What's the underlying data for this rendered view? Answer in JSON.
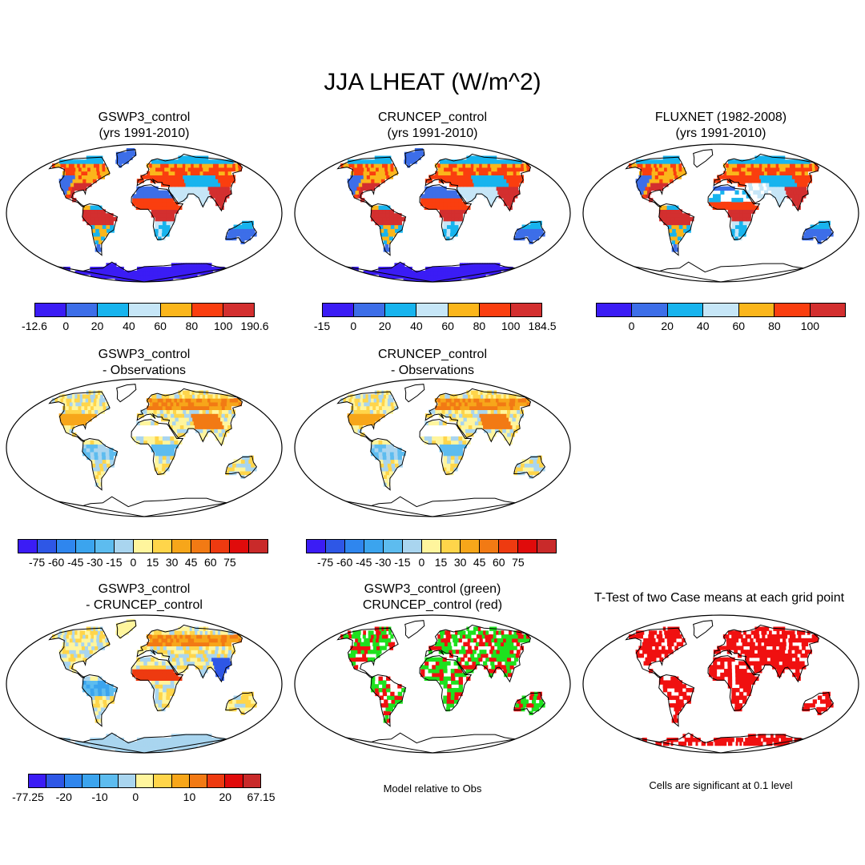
{
  "title": "JJA LHEAT (W/m^2)",
  "colors": {
    "row1": [
      "#3b1cf5",
      "#3d6ee8",
      "#17b4ee",
      "#c6e6f7",
      "#fbb61b",
      "#fa3e0f",
      "#d32f2f"
    ],
    "diff": [
      "#3b1cf5",
      "#2e57e6",
      "#2f86ee",
      "#3ba4ee",
      "#5dbcef",
      "#a9d5ef",
      "#fff59d",
      "#ffd54a",
      "#f7a61a",
      "#f27a14",
      "#ee3a10",
      "#e00b0b",
      "#c92a2a"
    ],
    "land": "#ffffff",
    "ocean": "#ffffff",
    "green": "#1ee11e",
    "red": "#f01010"
  },
  "chart_data": [
    {
      "id": "p1",
      "type": "heatmap",
      "title_line1": "GSWP3_control",
      "title_line2": "(yrs 1991-2010)",
      "palette": "row1",
      "style": "model",
      "colorbar": {
        "levels": [
          "-12.6",
          "0",
          "20",
          "40",
          "60",
          "80",
          "100",
          "190.6"
        ],
        "tick_mode": "edges"
      }
    },
    {
      "id": "p2",
      "type": "heatmap",
      "title_line1": "CRUNCEP_control",
      "title_line2": "(yrs 1991-2010)",
      "palette": "row1",
      "style": "model",
      "colorbar": {
        "levels": [
          "-15",
          "0",
          "20",
          "40",
          "60",
          "80",
          "100",
          "184.5"
        ],
        "tick_mode": "edges"
      }
    },
    {
      "id": "p3",
      "type": "heatmap",
      "title_line1": "FLUXNET (1982-2008)",
      "title_line2": "(yrs 1991-2010)",
      "palette": "row1",
      "style": "obs",
      "colorbar": {
        "levels": [
          "0",
          "20",
          "40",
          "60",
          "80",
          "100"
        ],
        "tick_mode": "inner"
      }
    },
    {
      "id": "p4",
      "type": "heatmap",
      "title_line1": "GSWP3_control",
      "title_line2": "- Observations",
      "palette": "diff",
      "style": "diffobs",
      "colorbar": {
        "levels": [
          "-75",
          "-60",
          "-45",
          "-30",
          "-15",
          "0",
          "15",
          "30",
          "45",
          "60",
          "75"
        ],
        "tick_mode": "inner"
      }
    },
    {
      "id": "p5",
      "type": "heatmap",
      "title_line1": "CRUNCEP_control",
      "title_line2": "- Observations",
      "palette": "diff",
      "style": "diffobs",
      "colorbar": {
        "levels": [
          "-75",
          "-60",
          "-45",
          "-30",
          "-15",
          "0",
          "15",
          "30",
          "45",
          "60",
          "75"
        ],
        "tick_mode": "inner"
      }
    },
    {
      "id": "p6",
      "type": "heatmap",
      "title_line1": "GSWP3_control",
      "title_line2": "- CRUNCEP_control",
      "palette": "diff",
      "style": "diffmodel",
      "colorbar": {
        "levels": [
          "-77.25",
          "-20",
          "-10",
          "0",
          "10",
          "20",
          "67.15"
        ],
        "tick_mode": "sparse"
      }
    },
    {
      "id": "p7",
      "type": "heatmap",
      "title_line1": "GSWP3_control (green)",
      "title_line2": "CRUNCEP_control (red)",
      "palette": "gr",
      "style": "greenred",
      "note": "Model relative to Obs"
    },
    {
      "id": "p8",
      "type": "heatmap",
      "title_line1": "T-Test of two Case means at each grid point",
      "title_line2": "",
      "palette": "sig",
      "style": "ttest",
      "note": "Cells are significant at 0.1 level"
    }
  ]
}
